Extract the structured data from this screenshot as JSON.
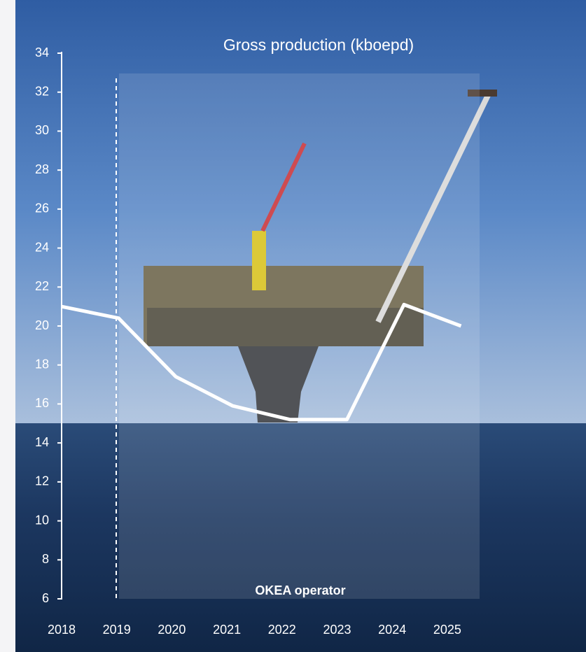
{
  "chart_data": {
    "type": "line",
    "title": "Gross production (kboepd)",
    "annotation": "OKEA operator",
    "categories": [
      "2018",
      "2019",
      "2020",
      "2021",
      "2022",
      "2023",
      "2024",
      "2025"
    ],
    "values": [
      21.0,
      20.4,
      17.4,
      15.9,
      15.2,
      15.2,
      21.1,
      20.0
    ],
    "color": "#ffffff",
    "ylim": [
      6,
      34
    ],
    "yticks": [
      6,
      8,
      10,
      12,
      14,
      16,
      18,
      20,
      22,
      24,
      26,
      28,
      30,
      32,
      34
    ],
    "grid": false
  }
}
